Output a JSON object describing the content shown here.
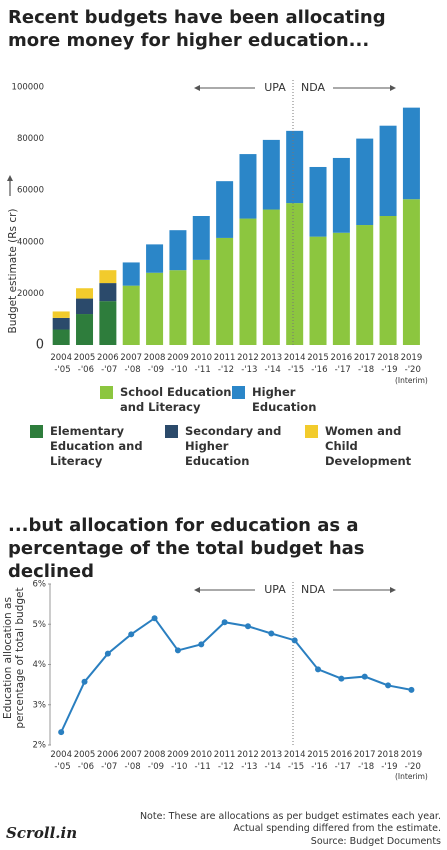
{
  "chart_data": [
    {
      "type": "bar",
      "stacked": true,
      "title": "Recent budgets have been allocating more money for higher education...",
      "ylabel": "Budget estimate (Rs cr)",
      "categories": [
        "2004 -'05",
        "2005 -'06",
        "2006 -'07",
        "2007 -'08",
        "2008 -'09",
        "2009 -'10",
        "2010 -'11",
        "2011 -'12",
        "2012 -'13",
        "2013 -'14",
        "2014 -'15",
        "2015 -'16",
        "2016 -'17",
        "2017 -'18",
        "2018 -'19",
        "2019 -'20"
      ],
      "series": [
        {
          "name": "Elementary Education and Literacy",
          "color": "#2e7d3c",
          "values": [
            6000,
            12000,
            17000,
            null,
            null,
            null,
            null,
            null,
            null,
            null,
            null,
            null,
            null,
            null,
            null,
            null
          ]
        },
        {
          "name": "Secondary and Higher Education",
          "color": "#2b4a6b",
          "values": [
            4500,
            6000,
            7000,
            null,
            null,
            null,
            null,
            null,
            null,
            null,
            null,
            null,
            null,
            null,
            null,
            null
          ]
        },
        {
          "name": "Women and Child Development",
          "color": "#f2cb2c",
          "values": [
            2500,
            4000,
            5000,
            null,
            null,
            null,
            null,
            null,
            null,
            null,
            null,
            null,
            null,
            null,
            null,
            null
          ]
        },
        {
          "name": "School Education and Literacy",
          "color": "#8cc63f",
          "values": [
            null,
            null,
            null,
            23000,
            28000,
            29000,
            33000,
            41500,
            49000,
            52500,
            55000,
            42000,
            43500,
            46500,
            50000,
            56500
          ]
        },
        {
          "name": "Higher Education",
          "color": "#2b86c8",
          "values": [
            null,
            null,
            null,
            9000,
            11000,
            15500,
            17000,
            22000,
            25000,
            27000,
            28000,
            27000,
            29000,
            33500,
            35000,
            35500
          ]
        }
      ],
      "ylim": [
        0,
        100000
      ],
      "yticks": [
        0,
        20000,
        40000,
        60000,
        80000,
        100000
      ],
      "grid": false,
      "annotations": [
        "UPA",
        "NDA",
        "(Interim)"
      ]
    },
    {
      "type": "line",
      "title": "...but allocation for education as a percentage of the total budget has declined",
      "ylabel": "Education allocation as percentage of total budget",
      "categories": [
        "2004 -'05",
        "2005 -'06",
        "2006 -'07",
        "2007 -'08",
        "2008 -'09",
        "2009 -'10",
        "2010 -'11",
        "2011 -'12",
        "2012 -'13",
        "2013 -'14",
        "2014 -'15",
        "2015 -'16",
        "2016 -'17",
        "2017 -'18",
        "2018 -'19",
        "2019 -'20"
      ],
      "color": "#2a7fc0",
      "values": [
        2.32,
        3.57,
        4.27,
        4.75,
        5.15,
        4.35,
        4.5,
        5.05,
        4.95,
        4.77,
        4.6,
        3.88,
        3.65,
        3.7,
        3.48,
        3.37
      ],
      "ylim": [
        2,
        6
      ],
      "yticks": [
        {
          "value": 2,
          "label": "2%"
        },
        {
          "value": 3,
          "label": "3%"
        },
        {
          "value": 4,
          "label": "4%"
        },
        {
          "value": 5,
          "label": "5%"
        },
        {
          "value": 6,
          "label": "6%"
        }
      ],
      "grid": false,
      "annotations": [
        "UPA",
        "NDA",
        "(Interim)"
      ]
    }
  ],
  "note": "Note: These are allocations as per budget estimates each year. Actual spending differed from the estimate.",
  "source": "Source: Budget Documents",
  "brand": "Scroll.in"
}
